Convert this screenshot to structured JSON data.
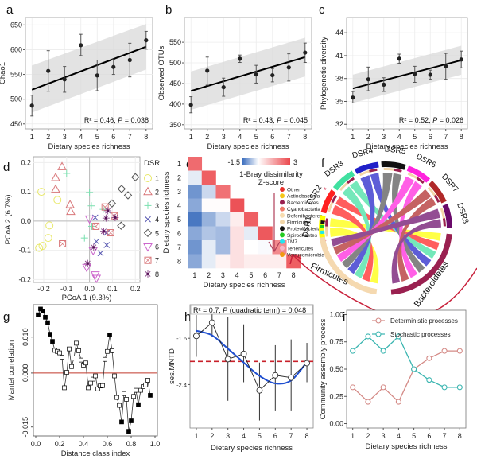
{
  "chart_data": [
    {
      "panel": "a",
      "type": "scatter",
      "xlabel": "Dietary species richness",
      "ylabel": "Chao1",
      "x": [
        1,
        2,
        3,
        4,
        5,
        6,
        7,
        8
      ],
      "y": [
        487,
        557,
        540,
        609,
        548,
        565,
        579,
        619
      ],
      "err": [
        [
          466,
          508
        ],
        [
          516,
          598
        ],
        [
          514,
          566
        ],
        [
          588,
          631
        ],
        [
          517,
          579
        ],
        [
          550,
          580
        ],
        [
          545,
          613
        ],
        [
          601,
          637
        ]
      ],
      "fit": {
        "y_start": 519,
        "y_end": 606,
        "ci_lower_start": 473,
        "ci_upper_start": 568,
        "ci_lower_end": 560,
        "ci_upper_end": 652
      },
      "annotation": {
        "r2": "R² = 0.46, ",
        "p_label": "P",
        "p_value": " = 0.038"
      },
      "xlim": [
        0.6,
        8.4
      ],
      "ylim": [
        440,
        665
      ],
      "yticks": [
        450,
        500,
        550,
        600,
        650
      ],
      "xticks": [
        1,
        2,
        3,
        4,
        5,
        6,
        7,
        8
      ]
    },
    {
      "panel": "b",
      "type": "scatter",
      "xlabel": "Dietary species richness",
      "ylabel": "Observed OTUs",
      "x": [
        1,
        2,
        3,
        4,
        5,
        6,
        7,
        8
      ],
      "y": [
        398,
        481,
        441,
        510,
        472,
        470,
        489,
        525
      ],
      "err": [
        [
          379,
          418
        ],
        [
          446,
          514
        ],
        [
          419,
          463
        ],
        [
          501,
          519
        ],
        [
          451,
          494
        ],
        [
          454,
          486
        ],
        [
          456,
          522
        ],
        [
          501,
          548
        ]
      ],
      "fit": {
        "y_start": 432,
        "y_end": 514,
        "ci_lower_start": 386,
        "ci_upper_start": 479,
        "ci_lower_end": 467,
        "ci_upper_end": 561
      },
      "annotation": {
        "r2": "R² = 0.43, ",
        "p_label": "P",
        "p_value": " = 0.045"
      },
      "xlim": [
        0.6,
        8.4
      ],
      "ylim": [
        340,
        610
      ],
      "yticks": [
        350,
        400,
        450,
        500,
        550
      ],
      "xticks": [
        1,
        2,
        3,
        4,
        5,
        6,
        7,
        8
      ]
    },
    {
      "panel": "c",
      "type": "scatter",
      "xlabel": "Dietary species richness",
      "ylabel": "Phylogenetic diversity",
      "x": [
        1,
        2,
        3,
        4,
        5,
        6,
        7,
        8
      ],
      "y": [
        35.5,
        37.9,
        37.2,
        40.6,
        38.6,
        38.5,
        39.6,
        40.5
      ],
      "err": [
        [
          34.8,
          36.3
        ],
        [
          36.4,
          39.5
        ],
        [
          36.3,
          38.1
        ],
        [
          40.0,
          41.2
        ],
        [
          37.5,
          39.6
        ],
        [
          37.9,
          39.1
        ],
        [
          37.9,
          41.3
        ],
        [
          39.4,
          41.6
        ]
      ],
      "fit": {
        "y_start": 36.7,
        "y_end": 40.4,
        "ci_lower_start": 34.8,
        "ci_upper_start": 38.5,
        "ci_lower_end": 38.5,
        "ci_upper_end": 42.3
      },
      "annotation": {
        "r2": "R² = 0.52, ",
        "p_label": "P",
        "p_value": " = 0.026"
      },
      "xlim": [
        0.6,
        8.4
      ],
      "ylim": [
        31.4,
        46
      ],
      "yticks": [
        32,
        35,
        38,
        41,
        44
      ],
      "xticks": [
        1,
        2,
        3,
        4,
        5,
        6,
        7,
        8
      ]
    },
    {
      "panel": "d",
      "type": "scatter",
      "xlabel": "PCoA 1 (9.3%)",
      "ylabel": "PCoA 2 (6.7%)",
      "xlim": [
        -0.245,
        0.22
      ],
      "ylim": [
        -0.21,
        0.22
      ],
      "xticks": [
        -0.2,
        -0.1,
        0.0,
        0.1,
        0.2
      ],
      "yticks": [
        -0.2,
        -0.1,
        0.0,
        0.1,
        0.2
      ],
      "legend_title": "DSR",
      "legend_position": "right",
      "groups": [
        {
          "name": "1",
          "color": "#e8e86a",
          "shape": "circle",
          "points": [
            [
              -0.21,
              0.1
            ],
            [
              -0.14,
              0.072
            ],
            [
              -0.175,
              -0.015
            ],
            [
              -0.18,
              -0.058
            ],
            [
              -0.205,
              -0.085
            ],
            [
              -0.22,
              -0.092
            ]
          ]
        },
        {
          "name": "2",
          "color": "#d9777a",
          "shape": "triangle-up",
          "points": [
            [
              -0.12,
              0.185
            ],
            [
              -0.148,
              0.148
            ],
            [
              -0.148,
              0.108
            ],
            [
              -0.085,
              0.055
            ],
            [
              -0.082,
              0.032
            ]
          ]
        },
        {
          "name": "3",
          "color": "#7be0b0",
          "shape": "plus",
          "points": [
            [
              -0.1,
              0.163
            ],
            [
              0.0,
              0.098
            ],
            [
              0.008,
              0.052
            ],
            [
              0.01,
              -0.018
            ],
            [
              -0.022,
              -0.058
            ],
            [
              0.06,
              0.04
            ]
          ]
        },
        {
          "name": "4",
          "color": "#5555b0",
          "shape": "x",
          "points": [
            [
              0.025,
              0.012
            ],
            [
              0.03,
              -0.07
            ],
            [
              0.075,
              -0.082
            ],
            [
              0.048,
              -0.11
            ],
            [
              0.075,
              -0.04
            ]
          ]
        },
        {
          "name": "5",
          "color": "#555555",
          "shape": "diamond",
          "points": [
            [
              0.2,
              0.15
            ],
            [
              0.14,
              0.11
            ],
            [
              0.168,
              0.088
            ],
            [
              0.098,
              0.06
            ],
            [
              0.138,
              -0.016
            ]
          ]
        },
        {
          "name": "6",
          "color": "#cc66cc",
          "shape": "triangle-down",
          "points": [
            [
              0.0,
              0.008
            ],
            [
              0.016,
              -0.1
            ],
            [
              -0.012,
              -0.158
            ],
            [
              0.025,
              -0.183
            ],
            [
              0.03,
              -0.195
            ]
          ]
        },
        {
          "name": "7",
          "color": "#d9777a",
          "shape": "square-x",
          "points": [
            [
              -0.118,
              -0.078
            ],
            [
              0.028,
              -0.018
            ],
            [
              0.068,
              0.048
            ],
            [
              0.092,
              -0.04
            ],
            [
              0.108,
              0.018
            ]
          ]
        },
        {
          "name": "8",
          "color": "#884488",
          "shape": "asterisk",
          "points": [
            [
              0.072,
              0.01
            ],
            [
              0.112,
              0.012
            ],
            [
              0.062,
              -0.035
            ],
            [
              0.018,
              -0.09
            ],
            [
              -0.008,
              -0.145
            ],
            [
              0.08,
              0.035
            ]
          ]
        }
      ]
    },
    {
      "panel": "e",
      "type": "heatmap",
      "xlabel": "Dietary species richness",
      "ylabel": "Dietary species richness",
      "categories": [
        "1",
        "2",
        "3",
        "4",
        "5",
        "6",
        "7",
        "8"
      ],
      "legend_title": "1-Bray dissimilarity\nZ-score",
      "legend_title_lines": [
        "1-Bray dissimilarity",
        "Z-score"
      ],
      "scale_min_label": "-1.5",
      "scale_max_label": "3",
      "scale": [
        -1.5,
        3
      ],
      "values": [
        [
          2.4
        ],
        [
          -0.2,
          2.6
        ],
        [
          -1.1,
          -0.4,
          2.3
        ],
        [
          -0.9,
          0.05,
          0.05,
          2.8
        ],
        [
          -1.4,
          -0.8,
          -0.4,
          0.3,
          2.6
        ],
        [
          -0.9,
          -0.6,
          -0.7,
          0.5,
          -0.2,
          2.7
        ],
        [
          -1.1,
          -0.2,
          -0.7,
          0.5,
          0.0,
          -0.05,
          1.9
        ],
        [
          -0.9,
          -0.2,
          0.2,
          0.5,
          0.3,
          0.3,
          0.3,
          2.6
        ]
      ]
    },
    {
      "panel": "f",
      "type": "chord",
      "sectors_top": [
        "DSR1",
        "DSR2",
        "DSR3",
        "DSR4",
        "DSR5",
        "DSR6",
        "DSR7",
        "DSR8"
      ],
      "sector_colors": [
        "#ffff00",
        "#ff2020",
        "#40e0a0",
        "#2020c8",
        "#111111",
        "#ff22dd",
        "#b02828",
        "#6a0a6a"
      ],
      "sectors_bottom": [
        "Firmicutes",
        "Bacteroidetes"
      ],
      "sectors_bottom_colors": [
        "#f5d9b0",
        "#9a2050"
      ],
      "firmicutes_ticks": [
        "350",
        "300",
        "250",
        "200",
        "150",
        "100",
        "50",
        "0"
      ],
      "bacteroidetes_ticks": [
        "0",
        "350",
        "300",
        "250",
        "200",
        "150",
        "100",
        "50",
        "0"
      ],
      "dsr_ticks": [
        "0",
        "50",
        "100"
      ],
      "legend": [
        {
          "name": "Other",
          "color": "#e8302a",
          "star": true
        },
        {
          "name": "Actinobacteria",
          "color": "#f5c518",
          "star": false
        },
        {
          "name": "Bacteroidetes",
          "color": "#9a2050",
          "star": true
        },
        {
          "name": "Cyanobacteria",
          "color": "#ee7a6a",
          "star": false
        },
        {
          "name": "Deferribacteres",
          "color": "#f7dcb0",
          "star": false
        },
        {
          "name": "Firmicutes",
          "color": "#f2d6a8",
          "star": true
        },
        {
          "name": "Proteobacteria",
          "color": "#111111",
          "star": false
        },
        {
          "name": "Spirochaetes",
          "color": "#22cc22",
          "star": false
        },
        {
          "name": "TM7",
          "color": "#22e6f0",
          "star": true
        },
        {
          "name": "Tenericutes",
          "color": "#f5b8c8",
          "star": false
        },
        {
          "name": "Verrucomicrobia",
          "color": "#f09a10",
          "star": true
        }
      ],
      "star_glyph": "*"
    },
    {
      "panel": "g",
      "type": "line",
      "xlabel": "Distance class index",
      "ylabel": "Mantel correlation",
      "xlim": [
        -0.02,
        1.02
      ],
      "ylim": [
        -0.0175,
        0.019
      ],
      "xticks": [
        0.0,
        0.2,
        0.4,
        0.6,
        0.8,
        1.0
      ],
      "xtick_labels": [
        "0.0",
        "0.2",
        "0.4",
        "0.6",
        "0.8",
        "1.0"
      ],
      "yticks": [
        -0.015,
        0.0,
        0.01
      ],
      "ytick_labels": [
        "-0.015",
        "0.000",
        "0.010"
      ],
      "hline": 0,
      "points": [
        [
          0.02,
          0.0162,
          1
        ],
        [
          0.04,
          0.0178,
          1
        ],
        [
          0.06,
          0.0172,
          1
        ],
        [
          0.08,
          0.0155,
          1
        ],
        [
          0.1,
          0.014,
          1
        ],
        [
          0.12,
          0.0108,
          1
        ],
        [
          0.14,
          0.0088,
          1
        ],
        [
          0.16,
          0.0063,
          0
        ],
        [
          0.18,
          0.006,
          0
        ],
        [
          0.2,
          0.0056,
          0
        ],
        [
          0.22,
          0.0044,
          0
        ],
        [
          0.24,
          -0.0041,
          0
        ],
        [
          0.26,
          0.0002,
          0
        ],
        [
          0.28,
          0.0067,
          0
        ],
        [
          0.3,
          0.0018,
          0
        ],
        [
          0.32,
          0.0042,
          0
        ],
        [
          0.34,
          0.0083,
          0
        ],
        [
          0.36,
          0.0062,
          0
        ],
        [
          0.38,
          0.0036,
          0
        ],
        [
          0.4,
          0.0022,
          0
        ],
        [
          0.42,
          0.0028,
          0
        ],
        [
          0.44,
          -0.0041,
          0
        ],
        [
          0.46,
          -0.0028,
          0
        ],
        [
          0.48,
          -0.0017,
          0
        ],
        [
          0.5,
          -0.0008,
          0
        ],
        [
          0.52,
          -0.0044,
          0
        ],
        [
          0.54,
          -0.0036,
          0
        ],
        [
          0.56,
          -0.0035,
          0
        ],
        [
          0.58,
          0.0038,
          0
        ],
        [
          0.6,
          0.006,
          0
        ],
        [
          0.62,
          0.0106,
          1
        ],
        [
          0.64,
          0.0062,
          0
        ],
        [
          0.66,
          -0.0008,
          0
        ],
        [
          0.68,
          -0.0068,
          0
        ],
        [
          0.7,
          -0.009,
          0
        ],
        [
          0.72,
          -0.0136,
          1
        ],
        [
          0.74,
          -0.0057,
          0
        ],
        [
          0.76,
          -0.0073,
          0
        ],
        [
          0.78,
          -0.0162,
          1
        ],
        [
          0.8,
          -0.0133,
          1
        ],
        [
          0.82,
          -0.0065,
          0
        ],
        [
          0.84,
          -0.0048,
          0
        ],
        [
          0.86,
          -0.0088,
          1
        ],
        [
          0.88,
          -0.0048,
          0
        ],
        [
          0.9,
          -0.0038,
          0
        ],
        [
          0.92,
          -0.0033,
          0
        ],
        [
          0.94,
          -0.002,
          0
        ],
        [
          0.96,
          -0.0062,
          1
        ]
      ]
    },
    {
      "panel": "h",
      "type": "line",
      "xlabel": "Dietary species richness",
      "ylabel": "ses.MNTD",
      "annotation": {
        "r2": "R² = 0.7, ",
        "p_label": "P",
        "p_value": " (quadratic term) = 0.048"
      },
      "x": [
        1,
        2,
        3,
        4,
        5,
        6,
        7,
        8
      ],
      "y": [
        -1.56,
        -1.33,
        -1.96,
        -1.87,
        -2.5,
        -2.24,
        -2.28,
        -2.03
      ],
      "err": [
        [
          -1.92,
          -1.2
        ],
        [
          -1.58,
          -1.05
        ],
        [
          -2.68,
          -1.24
        ],
        [
          -2.36,
          -1.36
        ],
        [
          -3.02,
          -2.02
        ],
        [
          -2.86,
          -1.72
        ],
        [
          -2.86,
          -1.62
        ],
        [
          -2.36,
          -1.68
        ]
      ],
      "hline": -2.0,
      "fit": [
        [
          1,
          -1.47
        ],
        [
          2,
          -1.55
        ],
        [
          3,
          -1.78
        ],
        [
          4,
          -2.02
        ],
        [
          5,
          -2.25
        ],
        [
          6,
          -2.38
        ],
        [
          7,
          -2.33
        ],
        [
          8,
          -2.01
        ]
      ],
      "xlim": [
        0.6,
        8.4
      ],
      "ylim": [
        -3.15,
        -1.02
      ],
      "yticks": [
        -1.6,
        -2.4
      ],
      "ytick_labels": [
        "-1.6",
        "-2.4"
      ],
      "xticks": [
        1,
        2,
        3,
        4,
        5,
        6,
        7,
        8
      ]
    },
    {
      "panel": "i",
      "type": "line",
      "xlabel": "Dietary species richness",
      "ylabel": "Community assembly process",
      "categories": [
        1,
        2,
        3,
        4,
        5,
        6,
        7,
        8
      ],
      "series": [
        {
          "name": "Deterministic processes",
          "color": "#d48a86",
          "values": [
            0.333,
            0.2,
            0.333,
            0.2,
            0.5,
            0.6,
            0.667,
            0.667
          ]
        },
        {
          "name": "Stochastic processes",
          "color": "#3ab5b0",
          "values": [
            0.667,
            0.8,
            0.667,
            0.8,
            0.5,
            0.4,
            0.333,
            0.333
          ]
        }
      ],
      "ylim": [
        -0.04,
        1.04
      ],
      "yticks": [
        0.0,
        0.25,
        0.5,
        0.75,
        1.0
      ],
      "ytick_labels": [
        "0.00",
        "0.25",
        "0.50",
        "0.75",
        "1.00"
      ],
      "legend_position": "top-right"
    }
  ]
}
